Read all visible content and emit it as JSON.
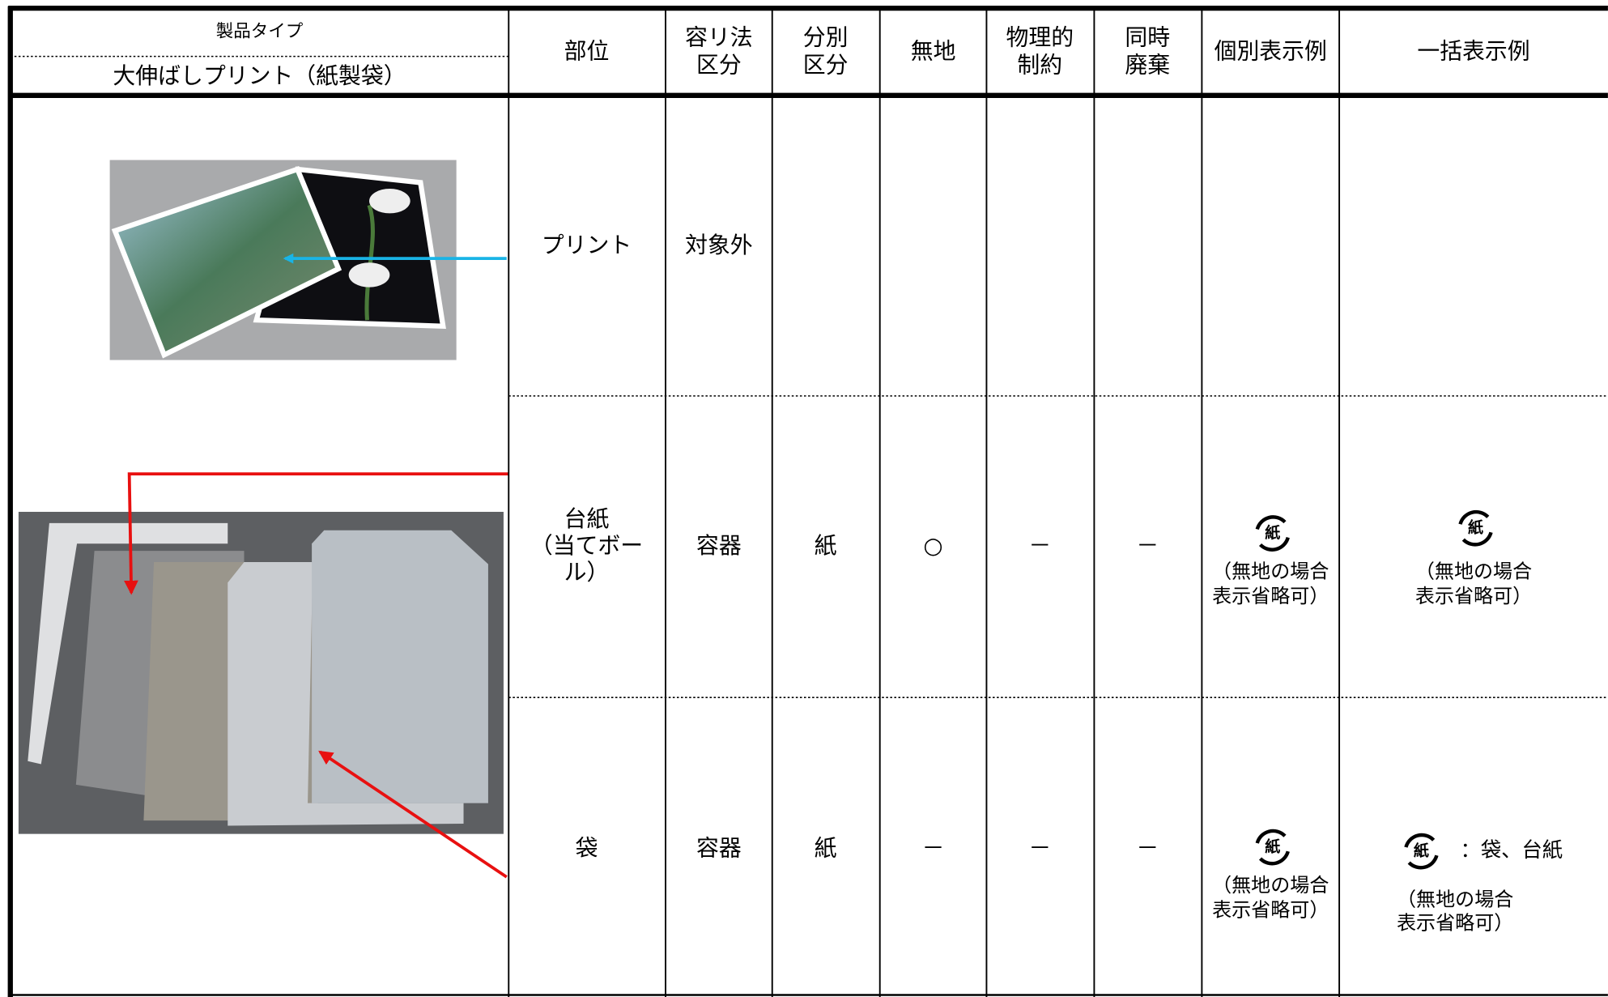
{
  "header": {
    "product_type_label": "製品タイプ",
    "product_type": "大伸ばしプリント（紙製袋）",
    "columns": [
      [
        "部位"
      ],
      [
        "容リ法",
        "区分"
      ],
      [
        "分別",
        "区分"
      ],
      [
        "無地"
      ],
      [
        "物理的",
        "制約"
      ],
      [
        "同時",
        "廃棄"
      ],
      [
        "個別表示例"
      ],
      [
        "一括表示例"
      ]
    ]
  },
  "rows": [
    {
      "part": [
        "プリント"
      ],
      "law": "対象外"
    },
    {
      "part": [
        "台紙",
        "（当てボー",
        "ル）"
      ],
      "law": "容器",
      "sort": "紙",
      "plain": "○",
      "physical": "－",
      "simultaneous": "－",
      "individual": {
        "mark": "紙",
        "note": [
          "（無地の場合",
          "表示省略可）"
        ]
      },
      "bulk": {
        "mark": "紙",
        "note": [
          "（無地の場合",
          "表示省略可）"
        ]
      }
    },
    {
      "part": [
        "袋"
      ],
      "law": "容器",
      "sort": "紙",
      "plain": "－",
      "physical": "－",
      "simultaneous": "－",
      "individual": {
        "mark": "紙",
        "note": [
          "（無地の場合",
          "表示省略可）"
        ]
      },
      "bulk": {
        "mark": "紙",
        "text": "：袋、台紙",
        "note": [
          "（無地の場合",
          "表示省略可）"
        ]
      }
    }
  ]
}
